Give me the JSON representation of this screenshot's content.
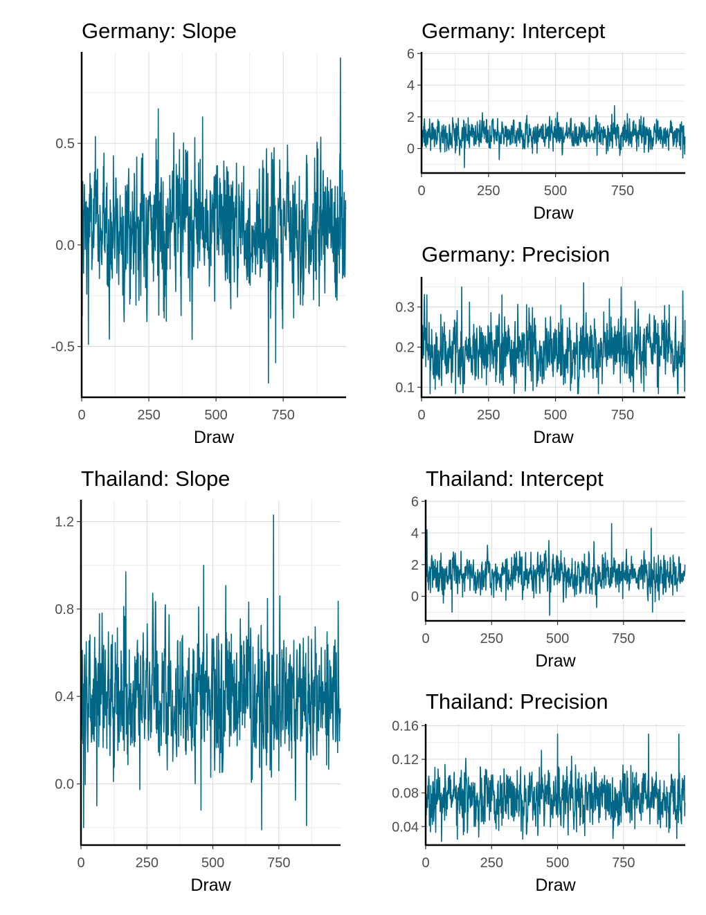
{
  "colors": {
    "trace": "#006787",
    "axis": "#000000",
    "grid": "#d9d9d9",
    "tick_text": "#4d4d4d"
  },
  "chart_data": [
    {
      "id": "germany-slope",
      "type": "line",
      "title": "Germany: Slope",
      "xlabel": "Draw",
      "ylabel": "",
      "xlim": [
        0,
        984
      ],
      "ylim": [
        -0.75,
        0.95
      ],
      "xticks": [
        0,
        250,
        500,
        750
      ],
      "xtick_labels": [
        "0",
        "250",
        "500",
        "750"
      ],
      "yticks": [
        -0.5,
        0.0,
        0.5
      ],
      "ytick_labels": [
        "-0.5",
        "0.0",
        "0.5"
      ],
      "n_draws": 984,
      "series": [
        {
          "mean": 0.09,
          "sd": 0.17,
          "extremes": [
            [
              2,
              -0.35
            ],
            [
              25,
              -0.49
            ],
            [
              285,
              0.67
            ],
            [
              450,
              0.63
            ],
            [
              695,
              -0.68
            ],
            [
              722,
              -0.58
            ],
            [
              963,
              0.92
            ]
          ]
        }
      ]
    },
    {
      "id": "germany-intercept",
      "type": "line",
      "title": "Germany: Intercept",
      "xlabel": "Draw",
      "ylabel": "",
      "xlim": [
        0,
        984
      ],
      "ylim": [
        -1.55,
        6.1
      ],
      "xticks": [
        0,
        250,
        500,
        750
      ],
      "xtick_labels": [
        "0",
        "250",
        "500",
        "750"
      ],
      "yticks": [
        0,
        2,
        4,
        6
      ],
      "ytick_labels": [
        "0",
        "2",
        "4",
        "6"
      ],
      "n_draws": 984,
      "series": [
        {
          "mean": 0.9,
          "sd": 0.48,
          "extremes": [
            [
              160,
              -1.2
            ],
            [
              290,
              -0.7
            ],
            [
              500,
              1.9
            ],
            [
              720,
              2.7
            ],
            [
              768,
              2.2
            ],
            [
              975,
              -0.6
            ]
          ]
        }
      ]
    },
    {
      "id": "germany-precision",
      "type": "line",
      "title": "Germany: Precision",
      "xlabel": "Draw",
      "ylabel": "",
      "xlim": [
        0,
        984
      ],
      "ylim": [
        0.075,
        0.375
      ],
      "xticks": [
        0,
        250,
        500,
        750
      ],
      "xtick_labels": [
        "0",
        "250",
        "500",
        "750"
      ],
      "yticks": [
        0.1,
        0.2,
        0.3
      ],
      "ytick_labels": [
        "0.1",
        "0.2",
        "0.3"
      ],
      "n_draws": 984,
      "series": [
        {
          "mean": 0.19,
          "sd": 0.045,
          "extremes": [
            [
              20,
              0.33
            ],
            [
              150,
              0.35
            ],
            [
              300,
              0.33
            ],
            [
              605,
              0.36
            ],
            [
              745,
              0.35
            ],
            [
              830,
              0.09
            ],
            [
              975,
              0.34
            ],
            [
              982,
              0.09
            ]
          ]
        }
      ]
    },
    {
      "id": "thailand-slope",
      "type": "line",
      "title": "Thailand: Slope",
      "xlabel": "Draw",
      "ylabel": "",
      "xlim": [
        0,
        984
      ],
      "ylim": [
        -0.28,
        1.3
      ],
      "xticks": [
        0,
        250,
        500,
        750
      ],
      "xtick_labels": [
        "0",
        "250",
        "500",
        "750"
      ],
      "yticks": [
        0.0,
        0.4,
        0.8,
        1.2
      ],
      "ytick_labels": [
        "0.0",
        "0.4",
        "0.8",
        "1.2"
      ],
      "n_draws": 984,
      "series": [
        {
          "mean": 0.4,
          "sd": 0.16,
          "extremes": [
            [
              10,
              -0.2
            ],
            [
              60,
              -0.1
            ],
            [
              170,
              0.97
            ],
            [
              455,
              -0.12
            ],
            [
              465,
              1.0
            ],
            [
              685,
              -0.21
            ],
            [
              730,
              1.23
            ],
            [
              855,
              -0.19
            ]
          ]
        }
      ]
    },
    {
      "id": "thailand-intercept",
      "type": "line",
      "title": "Thailand: Intercept",
      "xlabel": "Draw",
      "ylabel": "",
      "xlim": [
        0,
        984
      ],
      "ylim": [
        -1.55,
        6.1
      ],
      "xticks": [
        0,
        250,
        500,
        750
      ],
      "xtick_labels": [
        "0",
        "250",
        "500",
        "750"
      ],
      "yticks": [
        0,
        2,
        4,
        6
      ],
      "ytick_labels": [
        "0",
        "2",
        "4",
        "6"
      ],
      "n_draws": 984,
      "series": [
        {
          "mean": 1.4,
          "sd": 0.62,
          "extremes": [
            [
              5,
              4.2
            ],
            [
              100,
              -1.0
            ],
            [
              470,
              -1.2
            ],
            [
              705,
              4.6
            ],
            [
              855,
              4.3
            ],
            [
              860,
              -1.0
            ]
          ]
        }
      ]
    },
    {
      "id": "thailand-precision",
      "type": "line",
      "title": "Thailand: Precision",
      "xlabel": "Draw",
      "ylabel": "",
      "xlim": [
        0,
        984
      ],
      "ylim": [
        0.018,
        0.162
      ],
      "xticks": [
        0,
        250,
        500,
        750
      ],
      "xtick_labels": [
        "0",
        "250",
        "500",
        "750"
      ],
      "yticks": [
        0.04,
        0.08,
        0.12,
        0.16
      ],
      "ytick_labels": [
        "0.04",
        "0.08",
        "0.12",
        "0.16"
      ],
      "n_draws": 984,
      "series": [
        {
          "mean": 0.075,
          "sd": 0.018,
          "extremes": [
            [
              120,
              0.025
            ],
            [
              500,
              0.15
            ],
            [
              540,
              0.03
            ],
            [
              845,
              0.15
            ],
            [
              960,
              0.15
            ]
          ]
        }
      ]
    }
  ]
}
